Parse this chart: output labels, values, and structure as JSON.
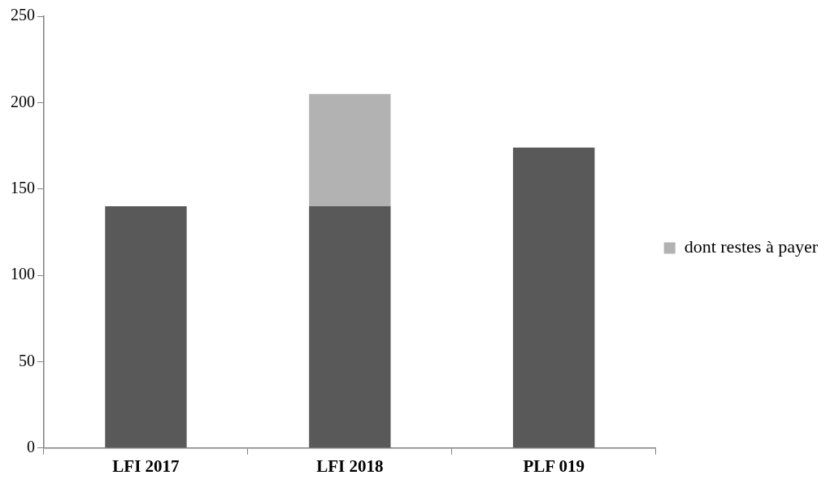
{
  "chart_data": {
    "type": "bar",
    "stacked": true,
    "categories": [
      "LFI 2017",
      "LFI 2018",
      "PLF 019"
    ],
    "series": [
      {
        "color": "#595959",
        "values": [
          140,
          140,
          174
        ]
      },
      {
        "name": "dont restes à payer",
        "color": "#b2b2b2",
        "values": [
          null,
          65,
          null
        ]
      }
    ],
    "ylim": [
      0,
      250
    ],
    "yticks": [
      0,
      50,
      100,
      150,
      200,
      250
    ],
    "grid": false,
    "legend": "right"
  }
}
